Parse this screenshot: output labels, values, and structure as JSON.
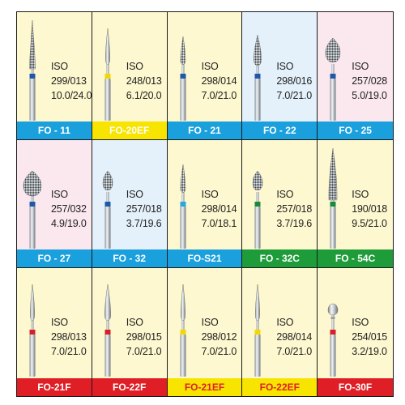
{
  "colors": {
    "yellow_panel": "#fdf8cf",
    "pink_panel": "#fbe8ef",
    "blue_panel": "#e4f1fb",
    "label_blue": "#1aa0dd",
    "label_yellow": "#f7e400",
    "label_green": "#1f9c3a",
    "label_red": "#e01e25",
    "band_blue": "#1f58a8",
    "band_yellow": "#f2d800",
    "band_green": "#1b8a3a",
    "band_red": "#d4202a",
    "band_cyan": "#2aa6e0"
  },
  "cells": [
    {
      "code": "FO - 11",
      "iso": "ISO",
      "ref": "299/013",
      "size": "10.0/24.0",
      "panel": "#fdf8cf",
      "label_color": "#1aa0dd",
      "label_text_color": "#ffffff",
      "band": "#1f58a8",
      "head": "cone-long",
      "icon": "pointed-taper-bur-icon"
    },
    {
      "code": "FO-20EF",
      "iso": "ISO",
      "ref": "248/013",
      "size": "6.1/20.0",
      "panel": "#fdf8cf",
      "label_color": "#f7e400",
      "label_text_color": "#ffffff",
      "band": "#f2d800",
      "head": "flame-smooth",
      "icon": "flame-bur-icon"
    },
    {
      "code": "FO - 21",
      "iso": "ISO",
      "ref": "298/014",
      "size": "7.0/21.0",
      "panel": "#fdf8cf",
      "label_color": "#1aa0dd",
      "label_text_color": "#ffffff",
      "band": "#1f58a8",
      "head": "flame",
      "icon": "flame-bur-icon"
    },
    {
      "code": "FO - 22",
      "iso": "ISO",
      "ref": "298/016",
      "size": "7.0/21.0",
      "panel": "#e4f1fb",
      "label_color": "#1aa0dd",
      "label_text_color": "#ffffff",
      "band": "#1f58a8",
      "head": "flame-wide",
      "icon": "flame-bur-icon"
    },
    {
      "code": "FO - 25",
      "iso": "ISO",
      "ref": "257/028",
      "size": "5.0/19.0",
      "panel": "#fbe8ef",
      "label_color": "#1aa0dd",
      "label_text_color": "#ffffff",
      "band": "#1f58a8",
      "head": "bud-large",
      "icon": "bud-bur-icon"
    },
    {
      "code": "FO - 27",
      "iso": "ISO",
      "ref": "257/032",
      "size": "4.9/19.0",
      "panel": "#fbe8ef",
      "label_color": "#1aa0dd",
      "label_text_color": "#ffffff",
      "band": "#1f58a8",
      "head": "bud-xlarge",
      "icon": "bud-bur-icon"
    },
    {
      "code": "FO - 32",
      "iso": "ISO",
      "ref": "257/018",
      "size": "3.7/19.6",
      "panel": "#e4f1fb",
      "label_color": "#1aa0dd",
      "label_text_color": "#ffffff",
      "band": "#1f58a8",
      "head": "bud-small",
      "icon": "bud-bur-icon"
    },
    {
      "code": "FO-S21",
      "iso": "ISO",
      "ref": "298/014",
      "size": "7.0/18.1",
      "panel": "#fdf8cf",
      "label_color": "#1aa0dd",
      "label_text_color": "#ffffff",
      "band": "#2aa6e0",
      "head": "flame",
      "icon": "flame-bur-icon"
    },
    {
      "code": "FO - 32C",
      "iso": "ISO",
      "ref": "257/018",
      "size": "3.7/19.6",
      "panel": "#fdf8cf",
      "label_color": "#1f9c3a",
      "label_text_color": "#ffffff",
      "band": "#1b8a3a",
      "head": "bud-small",
      "icon": "bud-bur-icon"
    },
    {
      "code": "FO - 54C",
      "iso": "ISO",
      "ref": "190/018",
      "size": "9.5/21.0",
      "panel": "#fdf8cf",
      "label_color": "#1f9c3a",
      "label_text_color": "#ffffff",
      "band": "#1b8a3a",
      "head": "cone-wide",
      "icon": "pointed-taper-bur-icon"
    },
    {
      "code": "FO-21F",
      "iso": "ISO",
      "ref": "298/013",
      "size": "7.0/21.0",
      "panel": "#fdf8cf",
      "label_color": "#e01e25",
      "label_text_color": "#ffffff",
      "band": "#d4202a",
      "head": "flame-smooth",
      "icon": "flame-bur-icon"
    },
    {
      "code": "FO-22F",
      "iso": "ISO",
      "ref": "298/015",
      "size": "7.0/21.0",
      "panel": "#fdf8cf",
      "label_color": "#e01e25",
      "label_text_color": "#ffffff",
      "band": "#d4202a",
      "head": "flame-smooth-wide",
      "icon": "flame-bur-icon"
    },
    {
      "code": "FO-21EF",
      "iso": "ISO",
      "ref": "298/012",
      "size": "7.0/21.0",
      "panel": "#fdf8cf",
      "label_color": "#f7e400",
      "label_text_color": "#e01e25",
      "band": "#f2d800",
      "head": "flame-smooth",
      "icon": "flame-bur-icon"
    },
    {
      "code": "FO-22EF",
      "iso": "ISO",
      "ref": "298/014",
      "size": "7.0/21.0",
      "panel": "#fdf8cf",
      "label_color": "#f7e400",
      "label_text_color": "#e01e25",
      "band": "#f2d800",
      "head": "flame-smooth",
      "icon": "flame-bur-icon"
    },
    {
      "code": "FO-30F",
      "iso": "ISO",
      "ref": "254/015",
      "size": "3.2/19.0",
      "panel": "#fdf8cf",
      "label_color": "#e01e25",
      "label_text_color": "#ffffff",
      "band": "#d4202a",
      "head": "ball-neck",
      "icon": "ball-bur-icon"
    }
  ]
}
